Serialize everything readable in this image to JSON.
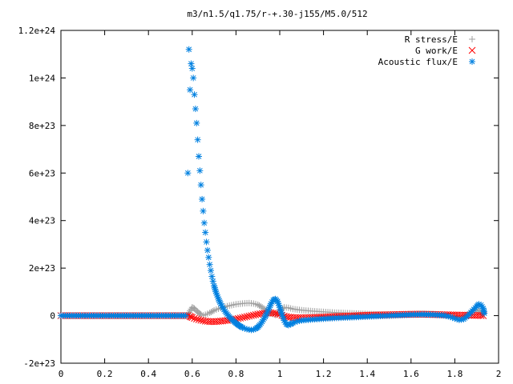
{
  "chart_data": {
    "type": "scatter",
    "title": "m3/n1.5/q1.75/r-+.30-j155/M5.0/512",
    "xlim": [
      0,
      2
    ],
    "ylim": [
      -2e+23,
      1.2e+24
    ],
    "grid": false,
    "legend_position": "top-right",
    "x_ticks": [
      {
        "value": 0,
        "label": "0"
      },
      {
        "value": 0.2,
        "label": "0.2"
      },
      {
        "value": 0.4,
        "label": "0.4"
      },
      {
        "value": 0.6,
        "label": "0.6"
      },
      {
        "value": 0.8,
        "label": "0.8"
      },
      {
        "value": 1,
        "label": "1"
      },
      {
        "value": 1.2,
        "label": "1.2"
      },
      {
        "value": 1.4,
        "label": "1.4"
      },
      {
        "value": 1.6,
        "label": "1.6"
      },
      {
        "value": 1.8,
        "label": "1.8"
      },
      {
        "value": 2,
        "label": "2"
      }
    ],
    "y_ticks": [
      {
        "value": -2e+23,
        "label": "-2e+23"
      },
      {
        "value": 0,
        "label": "0"
      },
      {
        "value": 2e+23,
        "label": "2e+23"
      },
      {
        "value": 4e+23,
        "label": "4e+23"
      },
      {
        "value": 6e+23,
        "label": "6e+23"
      },
      {
        "value": 8e+23,
        "label": "8e+23"
      },
      {
        "value": 1e+24,
        "label": "1e+24"
      },
      {
        "value": 1.2e+24,
        "label": "1.2e+24"
      }
    ],
    "series": [
      {
        "name": "R stress/E",
        "marker": "plus",
        "color": "#a0a0a0",
        "points": [
          [
            0.0,
            0
          ],
          [
            0.1,
            0
          ],
          [
            0.2,
            0
          ],
          [
            0.3,
            0
          ],
          [
            0.4,
            0
          ],
          [
            0.5,
            0
          ],
          [
            0.55,
            0
          ],
          [
            0.58,
            0
          ],
          [
            0.59,
            2e+22
          ],
          [
            0.6,
            3.5e+22
          ],
          [
            0.61,
            3e+22
          ],
          [
            0.62,
            2e+22
          ],
          [
            0.63,
            1.2e+22
          ],
          [
            0.64,
            5e+21
          ],
          [
            0.65,
            1e+21
          ],
          [
            0.66,
            4e+21
          ],
          [
            0.68,
            1.2e+22
          ],
          [
            0.7,
            2.2e+22
          ],
          [
            0.72,
            2.9e+22
          ],
          [
            0.74,
            3.5e+22
          ],
          [
            0.76,
            4e+22
          ],
          [
            0.78,
            4.4e+22
          ],
          [
            0.8,
            4.8e+22
          ],
          [
            0.82,
            5e+22
          ],
          [
            0.84,
            5.2e+22
          ],
          [
            0.86,
            5.3e+22
          ],
          [
            0.88,
            5.1e+22
          ],
          [
            0.9,
            4.6e+22
          ],
          [
            0.92,
            3.5e+22
          ],
          [
            0.94,
            2.2e+22
          ],
          [
            0.96,
            1e+22
          ],
          [
            0.98,
            3e+21
          ],
          [
            1.0,
            2e+22
          ],
          [
            1.02,
            3.5e+22
          ],
          [
            1.04,
            3.3e+22
          ],
          [
            1.06,
            2.8e+22
          ],
          [
            1.1,
            2.3e+22
          ],
          [
            1.15,
            1.9e+22
          ],
          [
            1.2,
            1.6e+22
          ],
          [
            1.25,
            1.3e+22
          ],
          [
            1.3,
            1.1e+22
          ],
          [
            1.35,
            9e+21
          ],
          [
            1.4,
            7e+21
          ],
          [
            1.45,
            5e+21
          ],
          [
            1.5,
            4e+21
          ],
          [
            1.55,
            4e+21
          ],
          [
            1.6,
            6e+21
          ],
          [
            1.65,
            8e+21
          ],
          [
            1.7,
            7e+21
          ],
          [
            1.75,
            3e+21
          ],
          [
            1.8,
            -3e+21
          ],
          [
            1.83,
            -8e+21
          ],
          [
            1.86,
            5e+21
          ],
          [
            1.88,
            2e+22
          ],
          [
            1.9,
            2.5e+22
          ],
          [
            1.92,
            1.5e+22
          ],
          [
            1.93,
            5e+21
          ]
        ]
      },
      {
        "name": "G work/E",
        "marker": "cross",
        "color": "#ff0000",
        "points": [
          [
            0.0,
            0
          ],
          [
            0.1,
            0
          ],
          [
            0.2,
            0
          ],
          [
            0.3,
            0
          ],
          [
            0.4,
            0
          ],
          [
            0.5,
            0
          ],
          [
            0.55,
            0
          ],
          [
            0.58,
            0
          ],
          [
            0.59,
            -3e+21
          ],
          [
            0.6,
            -8e+21
          ],
          [
            0.62,
            -1.4e+22
          ],
          [
            0.64,
            -1.9e+22
          ],
          [
            0.66,
            -2.3e+22
          ],
          [
            0.68,
            -2.5e+22
          ],
          [
            0.7,
            -2.5e+22
          ],
          [
            0.72,
            -2.4e+22
          ],
          [
            0.74,
            -2.2e+22
          ],
          [
            0.76,
            -2e+22
          ],
          [
            0.78,
            -1.7e+22
          ],
          [
            0.8,
            -1.4e+22
          ],
          [
            0.82,
            -1e+22
          ],
          [
            0.84,
            -6e+21
          ],
          [
            0.86,
            -2e+21
          ],
          [
            0.88,
            2e+21
          ],
          [
            0.9,
            6e+21
          ],
          [
            0.92,
            9e+21
          ],
          [
            0.94,
            1.1e+22
          ],
          [
            0.96,
            1.2e+22
          ],
          [
            0.98,
            1e+22
          ],
          [
            1.0,
            5e+21
          ],
          [
            1.02,
            -2e+21
          ],
          [
            1.04,
            -6e+21
          ],
          [
            1.06,
            -8e+21
          ],
          [
            1.08,
            -9e+21
          ],
          [
            1.1,
            -9e+21
          ],
          [
            1.15,
            -8e+21
          ],
          [
            1.2,
            -6e+21
          ],
          [
            1.25,
            -4e+21
          ],
          [
            1.3,
            -2e+21
          ],
          [
            1.35,
            0
          ],
          [
            1.4,
            2e+21
          ],
          [
            1.45,
            3e+21
          ],
          [
            1.5,
            4e+21
          ],
          [
            1.55,
            5e+21
          ],
          [
            1.6,
            6e+21
          ],
          [
            1.65,
            6e+21
          ],
          [
            1.7,
            5e+21
          ],
          [
            1.75,
            4e+21
          ],
          [
            1.8,
            3e+21
          ],
          [
            1.85,
            2e+21
          ],
          [
            1.9,
            1e+21
          ],
          [
            1.93,
            0
          ]
        ]
      },
      {
        "name": "Acoustic flux/E",
        "marker": "star",
        "color": "#0080e0",
        "points": [
          [
            0.0,
            0
          ],
          [
            0.05,
            0
          ],
          [
            0.1,
            0
          ],
          [
            0.15,
            0
          ],
          [
            0.2,
            0
          ],
          [
            0.25,
            0
          ],
          [
            0.3,
            0
          ],
          [
            0.35,
            0
          ],
          [
            0.4,
            0
          ],
          [
            0.45,
            0
          ],
          [
            0.5,
            0
          ],
          [
            0.55,
            0
          ],
          [
            0.57,
            0
          ],
          [
            0.58,
            6e+23
          ],
          [
            0.585,
            1.12e+24
          ],
          [
            0.59,
            9.5e+23
          ],
          [
            0.595,
            1.06e+24
          ],
          [
            0.6,
            1.04e+24
          ],
          [
            0.605,
            1e+24
          ],
          [
            0.61,
            9.3e+23
          ],
          [
            0.615,
            8.7e+23
          ],
          [
            0.62,
            8.1e+23
          ],
          [
            0.625,
            7.4e+23
          ],
          [
            0.63,
            6.7e+23
          ],
          [
            0.635,
            6.1e+23
          ],
          [
            0.64,
            5.5e+23
          ],
          [
            0.645,
            4.9e+23
          ],
          [
            0.65,
            4.4e+23
          ],
          [
            0.655,
            3.9e+23
          ],
          [
            0.66,
            3.5e+23
          ],
          [
            0.665,
            3.1e+23
          ],
          [
            0.67,
            2.75e+23
          ],
          [
            0.675,
            2.45e+23
          ],
          [
            0.68,
            2.15e+23
          ],
          [
            0.685,
            1.9e+23
          ],
          [
            0.69,
            1.65e+23
          ],
          [
            0.695,
            1.45e+23
          ],
          [
            0.7,
            1.25e+23
          ],
          [
            0.71,
            9.5e+22
          ],
          [
            0.72,
            7e+22
          ],
          [
            0.73,
            5e+22
          ],
          [
            0.74,
            3.3e+22
          ],
          [
            0.75,
            1.8e+22
          ],
          [
            0.76,
            6e+21
          ],
          [
            0.77,
            -5e+21
          ],
          [
            0.78,
            -1.5e+22
          ],
          [
            0.79,
            -2.4e+22
          ],
          [
            0.8,
            -3.2e+22
          ],
          [
            0.81,
            -3.9e+22
          ],
          [
            0.82,
            -4.5e+22
          ],
          [
            0.83,
            -5e+22
          ],
          [
            0.84,
            -5.4e+22
          ],
          [
            0.85,
            -5.7e+22
          ],
          [
            0.86,
            -5.9e+22
          ],
          [
            0.87,
            -6e+22
          ],
          [
            0.88,
            -5.9e+22
          ],
          [
            0.89,
            -5.5e+22
          ],
          [
            0.9,
            -4.8e+22
          ],
          [
            0.91,
            -3.8e+22
          ],
          [
            0.92,
            -2.5e+22
          ],
          [
            0.93,
            -1e+22
          ],
          [
            0.94,
            8e+21
          ],
          [
            0.95,
            2.8e+22
          ],
          [
            0.96,
            5e+22
          ],
          [
            0.97,
            6.5e+22
          ],
          [
            0.98,
            7e+22
          ],
          [
            0.99,
            6e+22
          ],
          [
            1.0,
            3.5e+22
          ],
          [
            1.01,
            5e+21
          ],
          [
            1.02,
            -2e+22
          ],
          [
            1.03,
            -3.5e+22
          ],
          [
            1.04,
            -4e+22
          ],
          [
            1.05,
            -3.6e+22
          ],
          [
            1.06,
            -3e+22
          ],
          [
            1.08,
            -2.4e+22
          ],
          [
            1.1,
            -2e+22
          ],
          [
            1.15,
            -1.6e+22
          ],
          [
            1.2,
            -1.3e+22
          ],
          [
            1.25,
            -1e+22
          ],
          [
            1.3,
            -8e+21
          ],
          [
            1.35,
            -6e+21
          ],
          [
            1.4,
            -4e+21
          ],
          [
            1.45,
            -2e+21
          ],
          [
            1.5,
            0
          ],
          [
            1.55,
            2e+21
          ],
          [
            1.6,
            4e+21
          ],
          [
            1.65,
            5e+21
          ],
          [
            1.7,
            4e+21
          ],
          [
            1.75,
            1e+21
          ],
          [
            1.78,
            -5e+21
          ],
          [
            1.8,
            -1.2e+22
          ],
          [
            1.82,
            -1.8e+22
          ],
          [
            1.84,
            -1.5e+22
          ],
          [
            1.86,
            0
          ],
          [
            1.88,
            2e+22
          ],
          [
            1.9,
            4e+22
          ],
          [
            1.91,
            4.8e+22
          ],
          [
            1.92,
            4.5e+22
          ],
          [
            1.93,
            3e+22
          ],
          [
            1.935,
            1e+22
          ]
        ]
      }
    ]
  }
}
